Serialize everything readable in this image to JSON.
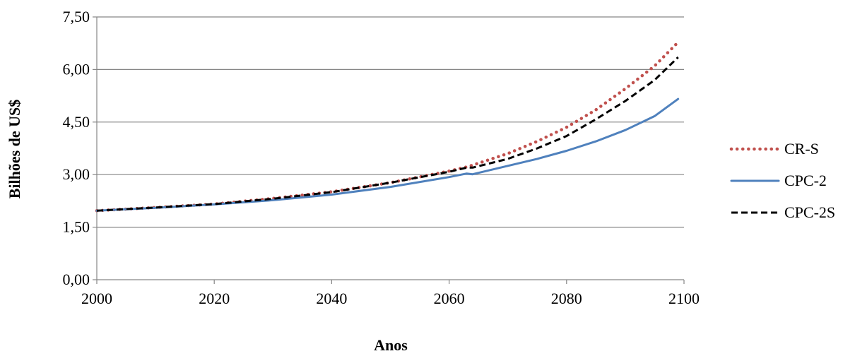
{
  "chart_data": {
    "type": "line",
    "xlabel": "Anos",
    "ylabel": "Bilhões de US$",
    "xlim": [
      2000,
      2100
    ],
    "ylim": [
      0,
      7.5
    ],
    "x_ticks": [
      "2000",
      "2020",
      "2040",
      "2060",
      "2080",
      "2100"
    ],
    "x_tick_values": [
      2000,
      2020,
      2040,
      2060,
      2080,
      2100
    ],
    "y_ticks": [
      "0,00",
      "1,50",
      "3,00",
      "4,50",
      "6,00",
      "7,50"
    ],
    "y_tick_values": [
      0,
      1.5,
      3.0,
      4.5,
      6.0,
      7.5
    ],
    "grid": "horizontal",
    "legend_position": "right",
    "x": [
      2000,
      2010,
      2020,
      2030,
      2040,
      2050,
      2060,
      2063,
      2064,
      2070,
      2075,
      2080,
      2085,
      2090,
      2095,
      2099
    ],
    "series": [
      {
        "name": "CR-S",
        "color": "#c0504d",
        "style": "dotted",
        "values": [
          1.97,
          2.06,
          2.16,
          2.32,
          2.51,
          2.77,
          3.1,
          3.22,
          3.27,
          3.6,
          3.95,
          4.35,
          4.85,
          5.45,
          6.1,
          6.78
        ]
      },
      {
        "name": "CPC-2",
        "color": "#4f81bd",
        "style": "solid",
        "values": [
          1.97,
          2.05,
          2.15,
          2.27,
          2.43,
          2.65,
          2.93,
          3.03,
          3.01,
          3.25,
          3.45,
          3.68,
          3.95,
          4.27,
          4.67,
          5.16
        ]
      },
      {
        "name": "CPC-2S",
        "color": "#000000",
        "style": "dashed",
        "values": [
          1.97,
          2.06,
          2.16,
          2.31,
          2.5,
          2.77,
          3.08,
          3.2,
          3.2,
          3.45,
          3.75,
          4.1,
          4.58,
          5.1,
          5.7,
          6.35
        ]
      }
    ]
  }
}
